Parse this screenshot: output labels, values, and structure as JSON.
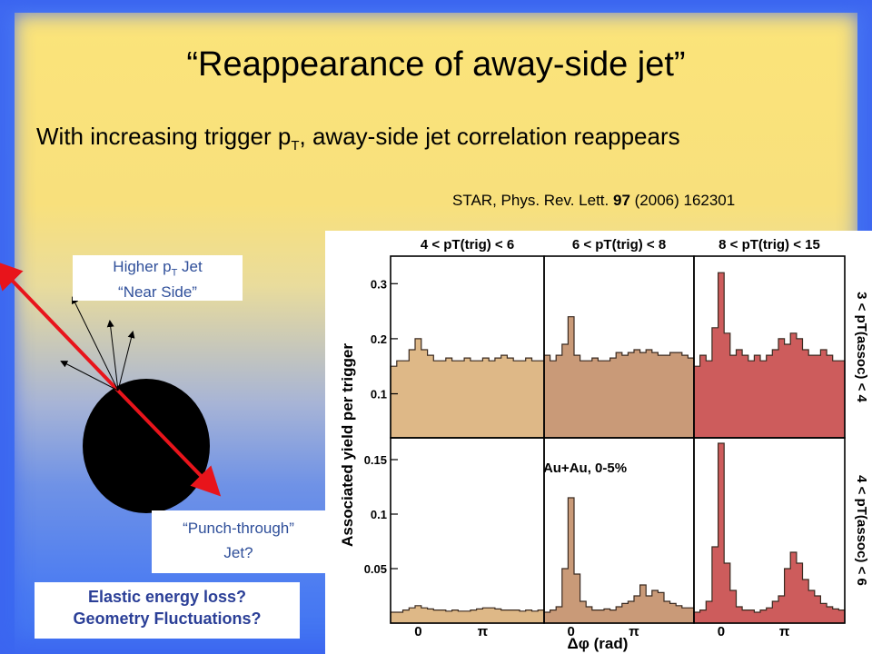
{
  "slide": {
    "title": "“Reappearance of away-side jet”",
    "subtitle_main": "With increasing trigger p",
    "subtitle_sub": "T",
    "subtitle_rest": ", away-side jet correlation reappears",
    "reference_pre": "STAR, Phys. Rev. Lett. ",
    "reference_vol": "97",
    "reference_post": " (2006) 162301",
    "near_side_line1_pre": "Higher p",
    "near_side_line1_sub": "T",
    "near_side_line1_post": " Jet",
    "near_side_line2": "“Near Side”",
    "punch_line1": "“Punch-through”",
    "punch_line2": "Jet?",
    "question_line1": "Elastic energy loss?",
    "question_line2": "Geometry Fluctuations?"
  },
  "chart_data": {
    "type": "bar",
    "ylabel": "Associated yield per trigger",
    "xlabel": "Δφ (rad)",
    "x_ticks": [
      "0",
      "π"
    ],
    "columns": [
      "4 < pT(trig) < 6",
      "6 < pT(trig) < 8",
      "8 < pT(trig) < 15"
    ],
    "rows": [
      "3 < pT(assoc) < 4",
      "4 < pT(assoc) < 6"
    ],
    "annotation": "Au+Au, 0-5%",
    "row_ylim": [
      [
        0.02,
        0.35
      ],
      [
        0.0,
        0.17
      ]
    ],
    "row_yticks": [
      [
        "0.1",
        "0.2",
        "0.3"
      ],
      [
        "0.05",
        "0.1",
        "0.15"
      ]
    ],
    "row_ytick_values": [
      [
        0.1,
        0.2,
        0.3
      ],
      [
        0.05,
        0.1,
        0.15
      ]
    ],
    "panel_colors": [
      "#deb887",
      "#c99a78",
      "#cd5c5c"
    ],
    "panels": [
      {
        "row": 0,
        "col": 0,
        "values": [
          0.15,
          0.16,
          0.16,
          0.18,
          0.2,
          0.18,
          0.17,
          0.16,
          0.16,
          0.165,
          0.16,
          0.16,
          0.165,
          0.16,
          0.16,
          0.165,
          0.16,
          0.165,
          0.17,
          0.165,
          0.16,
          0.16,
          0.165,
          0.16,
          0.16
        ]
      },
      {
        "row": 0,
        "col": 1,
        "values": [
          0.17,
          0.16,
          0.17,
          0.19,
          0.24,
          0.17,
          0.16,
          0.16,
          0.165,
          0.16,
          0.16,
          0.165,
          0.175,
          0.17,
          0.175,
          0.18,
          0.175,
          0.18,
          0.175,
          0.17,
          0.17,
          0.175,
          0.175,
          0.17,
          0.165
        ]
      },
      {
        "row": 0,
        "col": 2,
        "values": [
          0.15,
          0.17,
          0.16,
          0.22,
          0.32,
          0.21,
          0.17,
          0.18,
          0.17,
          0.16,
          0.17,
          0.16,
          0.17,
          0.18,
          0.2,
          0.19,
          0.21,
          0.2,
          0.18,
          0.17,
          0.17,
          0.18,
          0.17,
          0.16,
          0.16
        ]
      },
      {
        "row": 1,
        "col": 0,
        "values": [
          0.01,
          0.01,
          0.012,
          0.014,
          0.016,
          0.014,
          0.013,
          0.012,
          0.012,
          0.011,
          0.012,
          0.011,
          0.011,
          0.012,
          0.013,
          0.014,
          0.014,
          0.013,
          0.012,
          0.012,
          0.012,
          0.011,
          0.012,
          0.011,
          0.012
        ]
      },
      {
        "row": 1,
        "col": 1,
        "values": [
          0.01,
          0.012,
          0.015,
          0.05,
          0.115,
          0.045,
          0.02,
          0.015,
          0.012,
          0.012,
          0.013,
          0.012,
          0.015,
          0.018,
          0.02,
          0.025,
          0.035,
          0.025,
          0.03,
          0.028,
          0.02,
          0.018,
          0.016,
          0.014,
          0.014
        ]
      },
      {
        "row": 1,
        "col": 2,
        "values": [
          0.01,
          0.012,
          0.02,
          0.07,
          0.165,
          0.055,
          0.03,
          0.015,
          0.012,
          0.012,
          0.01,
          0.012,
          0.014,
          0.02,
          0.025,
          0.05,
          0.065,
          0.055,
          0.04,
          0.03,
          0.025,
          0.018,
          0.015,
          0.013,
          0.012
        ]
      }
    ]
  }
}
